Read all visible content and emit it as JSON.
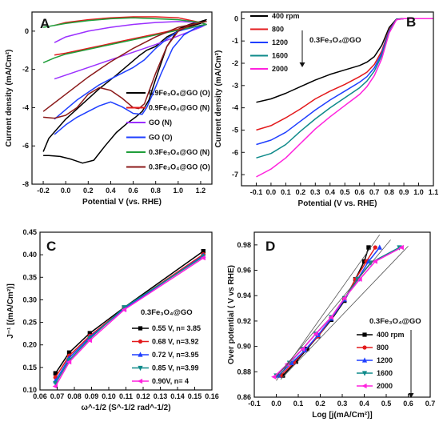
{
  "chart_data": [
    {
      "panel": "A",
      "type": "line",
      "xlabel": "Potential V (vs. RHE)",
      "ylabel": "Current density (mA/Cm²)",
      "xlim": [
        -0.3,
        1.3
      ],
      "ylim": [
        -8,
        1
      ],
      "xticks": [
        "-0.2",
        "0.0",
        "0.2",
        "0.4",
        "0.6",
        "0.8",
        "1.0",
        "1.2"
      ],
      "yticks": [
        "0",
        "-2",
        "-4",
        "-6",
        "-8"
      ],
      "legend_position": "lower-right",
      "series": [
        {
          "name": "0.9Fe₃O₄@GO (O)",
          "color": "#000000",
          "x": [
            -0.2,
            -0.15,
            -0.05,
            0.05,
            0.15,
            0.25,
            0.35,
            0.45,
            0.55,
            0.62,
            0.68,
            0.74,
            0.8,
            0.9,
            1.0,
            1.1,
            1.2,
            1.25,
            1.2,
            1.1,
            1.0,
            0.9,
            0.8,
            0.72,
            0.65,
            0.55,
            0.45,
            0.3,
            0.15,
            0.0,
            -0.15,
            -0.2
          ],
          "y": [
            -6.5,
            -6.5,
            -6.55,
            -6.7,
            -6.9,
            -6.75,
            -6.0,
            -5.3,
            -4.8,
            -4.5,
            -4.2,
            -3.6,
            -2.5,
            -0.8,
            0.1,
            0.35,
            0.5,
            0.6,
            0.4,
            0.25,
            0.0,
            -0.3,
            -0.8,
            -1.0,
            -1.3,
            -1.8,
            -2.3,
            -3.0,
            -3.8,
            -4.6,
            -5.6,
            -6.3
          ]
        },
        {
          "name": "0.9Fe₃O₄@GO (N)",
          "color": "#e31a1c",
          "x": [
            -0.1,
            0.0,
            0.2,
            0.4,
            0.6,
            0.8,
            1.0,
            1.2,
            1.25,
            1.2,
            1.0,
            0.8,
            0.6,
            0.4,
            0.2,
            0.0,
            -0.1
          ],
          "y": [
            -1.25,
            -1.15,
            -0.9,
            -0.65,
            -0.4,
            -0.15,
            0.1,
            0.3,
            0.35,
            0.45,
            0.7,
            0.75,
            0.75,
            0.7,
            0.6,
            0.45,
            0.3
          ]
        },
        {
          "name": "GO (N)",
          "color": "#9b30ff",
          "x": [
            -0.1,
            0.0,
            0.2,
            0.4,
            0.6,
            0.8,
            1.0,
            1.2,
            1.25,
            1.2,
            1.0,
            0.8,
            0.6,
            0.4,
            0.2,
            0.0,
            -0.1
          ],
          "y": [
            -2.5,
            -2.3,
            -1.9,
            -1.5,
            -1.1,
            -0.7,
            -0.25,
            0.2,
            0.35,
            0.45,
            0.5,
            0.45,
            0.35,
            0.2,
            0.0,
            -0.3,
            -0.6
          ]
        },
        {
          "name": "GO (O)",
          "color": "#1f3fff",
          "x": [
            -0.1,
            0.0,
            0.1,
            0.2,
            0.3,
            0.4,
            0.5,
            0.6,
            0.68,
            0.72,
            0.78,
            0.85,
            0.95,
            1.05,
            1.15,
            1.25,
            1.2,
            1.0,
            0.9,
            0.8,
            0.7,
            0.6,
            0.5,
            0.4,
            0.3,
            0.2,
            0.1,
            0.0,
            -0.1
          ],
          "y": [
            -5.4,
            -4.9,
            -4.5,
            -4.2,
            -3.9,
            -3.7,
            -3.95,
            -4.3,
            -4.35,
            -4.0,
            -3.2,
            -2.2,
            -0.9,
            -0.2,
            0.15,
            0.35,
            0.3,
            0.0,
            -0.4,
            -0.9,
            -1.5,
            -1.9,
            -2.2,
            -2.5,
            -2.8,
            -3.2,
            -3.6,
            -4.1,
            -4.6
          ]
        },
        {
          "name": "0.3Fe₃O₄@GO (N)",
          "color": "#1f9e3a",
          "x": [
            -0.2,
            -0.1,
            0.0,
            0.2,
            0.4,
            0.6,
            0.8,
            1.0,
            1.2,
            1.25,
            1.2,
            1.0,
            0.8,
            0.6,
            0.4,
            0.2,
            0.0,
            -0.2
          ],
          "y": [
            -1.65,
            -1.4,
            -1.2,
            -0.95,
            -0.7,
            -0.45,
            -0.2,
            0.05,
            0.3,
            0.35,
            0.45,
            0.6,
            0.65,
            0.7,
            0.65,
            0.55,
            0.4,
            0.2
          ]
        },
        {
          "name": "0.3Fe₃O₄@GO (O)",
          "color": "#8b1a1a",
          "x": [
            -0.2,
            -0.1,
            0.0,
            0.1,
            0.2,
            0.3,
            0.4,
            0.5,
            0.6,
            0.65,
            0.7,
            0.8,
            0.9,
            1.0,
            1.1,
            1.2,
            1.25,
            1.2,
            1.0,
            0.8,
            0.6,
            0.4,
            0.2,
            0.0,
            -0.2
          ],
          "y": [
            -4.5,
            -4.55,
            -4.4,
            -4.0,
            -3.3,
            -2.95,
            -3.1,
            -3.5,
            -4.0,
            -4.05,
            -3.8,
            -2.2,
            -0.8,
            0.0,
            0.3,
            0.45,
            0.5,
            0.45,
            0.2,
            -0.3,
            -0.9,
            -1.6,
            -2.4,
            -3.3,
            -4.2
          ]
        }
      ]
    },
    {
      "panel": "B",
      "type": "line",
      "xlabel": "Potential (V vs. RHE)",
      "ylabel": "Current density (mA/Cm²)",
      "annotation": "0.3Fe₃O₄@GO",
      "xlim": [
        -0.2,
        1.1
      ],
      "ylim": [
        -7.5,
        0.3
      ],
      "xticks": [
        "-0.1",
        "0.0",
        "0.1",
        "0.2",
        "0.3",
        "0.4",
        "0.5",
        "0.6",
        "0.7",
        "0.8",
        "0.9",
        "1.0",
        "1.1"
      ],
      "yticks": [
        "0",
        "-1",
        "-2",
        "-3",
        "-4",
        "-5",
        "-6",
        "-7"
      ],
      "legend_position": "top-left",
      "series": [
        {
          "name": "400 rpm",
          "color": "#000000",
          "x": [
            -0.1,
            0.0,
            0.1,
            0.2,
            0.3,
            0.4,
            0.5,
            0.6,
            0.65,
            0.7,
            0.75,
            0.8,
            0.85,
            0.9,
            1.0,
            1.1
          ],
          "y": [
            -3.75,
            -3.6,
            -3.35,
            -3.05,
            -2.75,
            -2.5,
            -2.3,
            -2.1,
            -1.95,
            -1.7,
            -1.2,
            -0.4,
            -0.02,
            0.0,
            0.0,
            0.0
          ]
        },
        {
          "name": "800",
          "color": "#e31a1c",
          "x": [
            -0.1,
            0.0,
            0.1,
            0.2,
            0.3,
            0.4,
            0.5,
            0.6,
            0.65,
            0.7,
            0.75,
            0.8,
            0.85,
            0.9,
            1.0,
            1.1
          ],
          "y": [
            -5.0,
            -4.8,
            -4.45,
            -4.05,
            -3.6,
            -3.25,
            -2.95,
            -2.6,
            -2.4,
            -2.05,
            -1.45,
            -0.5,
            -0.03,
            0.0,
            0.0,
            0.0
          ]
        },
        {
          "name": "1200",
          "color": "#1f3fff",
          "x": [
            -0.1,
            0.0,
            0.1,
            0.2,
            0.3,
            0.4,
            0.5,
            0.6,
            0.65,
            0.7,
            0.75,
            0.8,
            0.85,
            0.9,
            1.0,
            1.1
          ],
          "y": [
            -5.65,
            -5.45,
            -5.1,
            -4.6,
            -4.1,
            -3.65,
            -3.25,
            -2.85,
            -2.6,
            -2.2,
            -1.55,
            -0.55,
            -0.03,
            0.0,
            0.0,
            0.0
          ]
        },
        {
          "name": "1600",
          "color": "#0e8a8a",
          "x": [
            -0.1,
            0.0,
            0.1,
            0.2,
            0.3,
            0.4,
            0.5,
            0.6,
            0.65,
            0.7,
            0.75,
            0.8,
            0.85,
            0.9,
            1.0,
            1.1
          ],
          "y": [
            -6.25,
            -6.05,
            -5.65,
            -5.05,
            -4.5,
            -4.0,
            -3.55,
            -3.1,
            -2.8,
            -2.35,
            -1.65,
            -0.6,
            -0.04,
            0.0,
            0.0,
            0.0
          ]
        },
        {
          "name": "2000",
          "color": "#ff22dd",
          "x": [
            -0.1,
            0.0,
            0.1,
            0.2,
            0.3,
            0.4,
            0.5,
            0.6,
            0.65,
            0.7,
            0.75,
            0.8,
            0.85,
            0.9,
            1.0,
            1.1
          ],
          "y": [
            -7.1,
            -6.75,
            -6.25,
            -5.6,
            -4.95,
            -4.4,
            -3.9,
            -3.4,
            -3.05,
            -2.55,
            -1.8,
            -0.65,
            -0.05,
            0.0,
            0.0,
            0.0
          ]
        }
      ]
    },
    {
      "panel": "C",
      "type": "line",
      "xlabel": "ω^-1/2 (S^-1/2 rad^-1/2)",
      "ylabel": "J⁻¹ [(mA/Cm²)]",
      "annotation": "0.3Fe₃O₄@GO",
      "xlim": [
        0.06,
        0.16
      ],
      "ylim": [
        0.1,
        0.45
      ],
      "xticks": [
        "0.06",
        "0.07",
        "0.08",
        "0.09",
        "0.10",
        "0.11",
        "0.12",
        "0.13",
        "0.14",
        "0.15",
        "0.16"
      ],
      "yticks": [
        "0.10",
        "0.15",
        "0.20",
        "0.25",
        "0.30",
        "0.35",
        "0.40",
        "0.45"
      ],
      "legend_position": "lower-right",
      "x": [
        0.069,
        0.077,
        0.089,
        0.109,
        0.155
      ],
      "series": [
        {
          "name": "0.55 V, n= 3.85",
          "color": "#000000",
          "marker": "square",
          "y": [
            0.137,
            0.183,
            0.226,
            0.283,
            0.408
          ]
        },
        {
          "name": "0.68 V, n=3.92",
          "color": "#e31a1c",
          "marker": "circle",
          "y": [
            0.128,
            0.176,
            0.22,
            0.281,
            0.401
          ]
        },
        {
          "name": "0.72 V, n=3.95",
          "color": "#1f3fff",
          "marker": "triangle-up",
          "y": [
            0.12,
            0.171,
            0.217,
            0.28,
            0.398
          ]
        },
        {
          "name": "0.85 V, n=3.99",
          "color": "#0e8a8a",
          "marker": "triangle-down",
          "y": [
            0.115,
            0.166,
            0.214,
            0.283,
            0.396
          ]
        },
        {
          "name": "0.90V, n= 4",
          "color": "#ff22dd",
          "marker": "triangle-left",
          "y": [
            0.108,
            0.162,
            0.21,
            0.278,
            0.393
          ]
        }
      ]
    },
    {
      "panel": "D",
      "type": "line",
      "xlabel": "Log [j(mA/Cm²)]",
      "ylabel": "Over potential ( V vs RHE)",
      "annotation": "0.3Fe₃O₄@GO",
      "xlim": [
        -0.1,
        0.7
      ],
      "ylim": [
        0.86,
        0.99
      ],
      "xticks": [
        "-0.1",
        "0.0",
        "0.1",
        "0.2",
        "0.3",
        "0.4",
        "0.5",
        "0.6",
        "0.7"
      ],
      "yticks": [
        "0.86",
        "0.88",
        "0.90",
        "0.92",
        "0.94",
        "0.96",
        "0.98"
      ],
      "legend_position": "lower-right",
      "series": [
        {
          "name": "400 rpm",
          "color": "#000000",
          "marker": "square",
          "x": [
            0.03,
            0.09,
            0.14,
            0.19,
            0.25,
            0.31,
            0.36,
            0.4,
            0.42
          ],
          "y": [
            0.877,
            0.888,
            0.898,
            0.908,
            0.921,
            0.936,
            0.953,
            0.967,
            0.978
          ]
        },
        {
          "name": "800",
          "color": "#e31a1c",
          "marker": "circle",
          "x": [
            0.02,
            0.08,
            0.13,
            0.19,
            0.25,
            0.31,
            0.36,
            0.41,
            0.45
          ],
          "y": [
            0.877,
            0.887,
            0.897,
            0.908,
            0.922,
            0.937,
            0.953,
            0.967,
            0.978
          ]
        },
        {
          "name": "1200",
          "color": "#1f3fff",
          "marker": "triangle-up",
          "x": [
            0.01,
            0.07,
            0.13,
            0.19,
            0.25,
            0.31,
            0.37,
            0.42,
            0.47
          ],
          "y": [
            0.877,
            0.887,
            0.897,
            0.909,
            0.922,
            0.937,
            0.953,
            0.967,
            0.978
          ]
        },
        {
          "name": "1600",
          "color": "#0e8a8a",
          "marker": "triangle-down",
          "x": [
            0.0,
            0.06,
            0.12,
            0.18,
            0.25,
            0.31,
            0.37,
            0.43,
            0.56
          ],
          "y": [
            0.877,
            0.887,
            0.898,
            0.91,
            0.923,
            0.938,
            0.953,
            0.966,
            0.978
          ]
        },
        {
          "name": "2000",
          "color": "#ff22dd",
          "marker": "triangle-left",
          "x": [
            -0.01,
            0.05,
            0.12,
            0.18,
            0.25,
            0.31,
            0.38,
            0.45,
            0.57
          ],
          "y": [
            0.876,
            0.886,
            0.898,
            0.91,
            0.923,
            0.938,
            0.953,
            0.967,
            0.978
          ]
        }
      ]
    }
  ]
}
